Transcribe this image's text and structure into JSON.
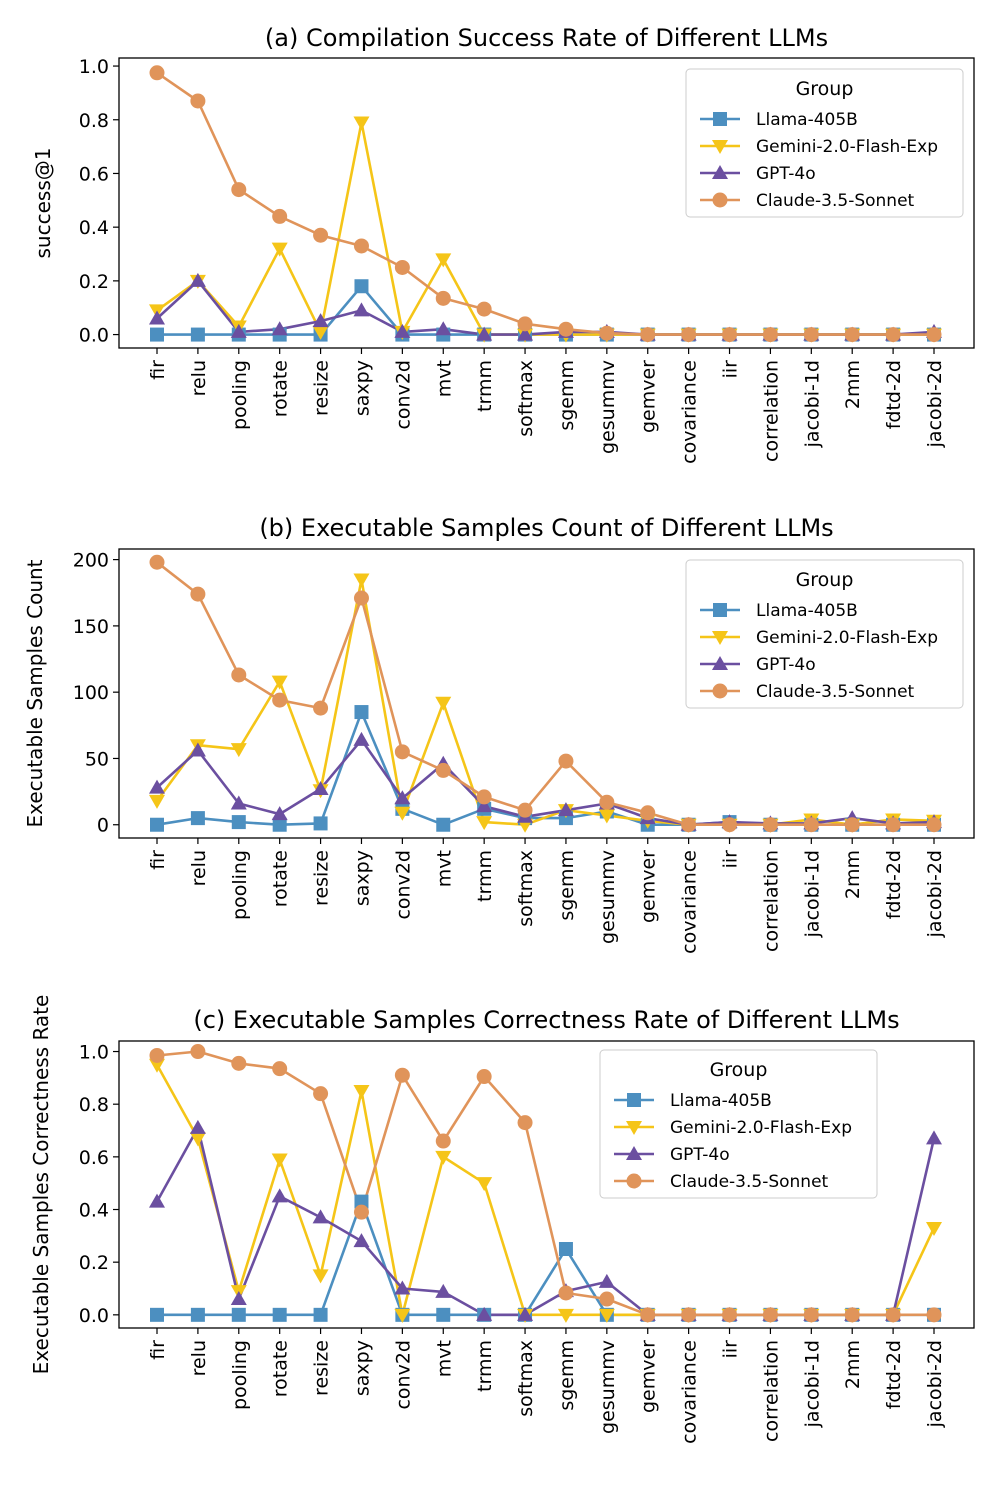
{
  "chart_data": [
    {
      "type": "line",
      "title": "(a) Compilation Success Rate of Different LLMs",
      "xlabel": "",
      "ylabel": "success@1",
      "ylim": [
        -0.05,
        1.03
      ],
      "yticks": [
        0.0,
        0.2,
        0.4,
        0.6,
        0.8,
        1.0
      ],
      "ytick_labels": [
        "0.0",
        "0.2",
        "0.4",
        "0.6",
        "0.8",
        "1.0"
      ],
      "legend_position": "top-right",
      "categories": [
        "fir",
        "relu",
        "pooling",
        "rotate",
        "resize",
        "saxpy",
        "conv2d",
        "mvt",
        "trmm",
        "softmax",
        "sgemm",
        "gesummv",
        "gemver",
        "covariance",
        "iir",
        "correlation",
        "jacobi-1d",
        "2mm",
        "fdtd-2d",
        "jacobi-2d"
      ],
      "legend": {
        "title": "Group",
        "entries": [
          "Llama-405B",
          "Gemini-2.0-Flash-Exp",
          "GPT-4o",
          "Claude-3.5-Sonnet"
        ]
      },
      "series": [
        {
          "name": "Llama-405B",
          "color": "#4c8fc0",
          "marker": "square",
          "values": [
            0,
            0,
            0,
            0,
            0,
            0.18,
            0,
            0,
            0,
            0,
            0,
            0,
            0,
            0,
            0,
            0,
            0,
            0,
            0,
            0
          ]
        },
        {
          "name": "Gemini-2.0-Flash-Exp",
          "color": "#f5c518",
          "marker": "triangle-down",
          "values": [
            0.09,
            0.2,
            0.03,
            0.32,
            0.01,
            0.79,
            0.01,
            0.28,
            0,
            0,
            0,
            0,
            0,
            0,
            0,
            0,
            0,
            0,
            0,
            0
          ]
        },
        {
          "name": "GPT-4o",
          "color": "#6b4fa0",
          "marker": "triangle-up",
          "values": [
            0.06,
            0.2,
            0.01,
            0.02,
            0.05,
            0.09,
            0.01,
            0.02,
            0,
            0,
            0.01,
            0.01,
            0,
            0,
            0,
            0,
            0,
            0,
            0,
            0.01
          ]
        },
        {
          "name": "Claude-3.5-Sonnet",
          "color": "#e0945a",
          "marker": "circle",
          "values": [
            0.975,
            0.87,
            0.54,
            0.44,
            0.37,
            0.33,
            0.25,
            0.135,
            0.095,
            0.04,
            0.02,
            0.005,
            0,
            0,
            0,
            0,
            0,
            0,
            0,
            0
          ]
        }
      ]
    },
    {
      "type": "line",
      "title": "(b) Executable Samples Count of Different LLMs",
      "xlabel": "",
      "ylabel": "Executable Samples Count",
      "ylim": [
        -10,
        208
      ],
      "yticks": [
        0,
        50,
        100,
        150,
        200
      ],
      "ytick_labels": [
        "0",
        "50",
        "100",
        "150",
        "200"
      ],
      "legend_position": "top-right",
      "categories": [
        "fir",
        "relu",
        "pooling",
        "rotate",
        "resize",
        "saxpy",
        "conv2d",
        "mvt",
        "trmm",
        "softmax",
        "sgemm",
        "gesummv",
        "gemver",
        "covariance",
        "iir",
        "correlation",
        "jacobi-1d",
        "2mm",
        "fdtd-2d",
        "jacobi-2d"
      ],
      "legend": {
        "title": "Group",
        "entries": [
          "Llama-405B",
          "Gemini-2.0-Flash-Exp",
          "GPT-4o",
          "Claude-3.5-Sonnet"
        ]
      },
      "series": [
        {
          "name": "Llama-405B",
          "color": "#4c8fc0",
          "marker": "square",
          "values": [
            0,
            5,
            2,
            0,
            1,
            85,
            12,
            0,
            12,
            5,
            5,
            10,
            0,
            0,
            2,
            0,
            0,
            0,
            0,
            0
          ]
        },
        {
          "name": "Gemini-2.0-Flash-Exp",
          "color": "#f5c518",
          "marker": "triangle-down",
          "values": [
            18,
            60,
            57,
            108,
            26,
            185,
            9,
            92,
            2,
            0,
            11,
            7,
            3,
            0,
            0,
            0,
            4,
            0,
            4,
            3
          ]
        },
        {
          "name": "GPT-4o",
          "color": "#6b4fa0",
          "marker": "triangle-up",
          "values": [
            28,
            56,
            16,
            8,
            27,
            64,
            20,
            46,
            14,
            6,
            11,
            16,
            5,
            0,
            2,
            1,
            1,
            5,
            1,
            2
          ]
        },
        {
          "name": "Claude-3.5-Sonnet",
          "color": "#e0945a",
          "marker": "circle",
          "values": [
            198,
            174,
            113,
            94,
            88,
            171,
            55,
            41,
            21,
            11,
            48,
            17,
            9,
            0,
            0,
            0,
            0,
            0,
            0,
            0
          ]
        }
      ]
    },
    {
      "type": "line",
      "title": "(c) Executable Samples Correctness Rate of Different LLMs",
      "xlabel": "",
      "ylabel": "Executable Samples Correctness Rate",
      "ylim": [
        -0.05,
        1.04
      ],
      "yticks": [
        0.0,
        0.2,
        0.4,
        0.6,
        0.8,
        1.0
      ],
      "ytick_labels": [
        "0.0",
        "0.2",
        "0.4",
        "0.6",
        "0.8",
        "1.0"
      ],
      "legend_position": "top-right",
      "categories": [
        "fir",
        "relu",
        "pooling",
        "rotate",
        "resize",
        "saxpy",
        "conv2d",
        "mvt",
        "trmm",
        "softmax",
        "sgemm",
        "gesummv",
        "gemver",
        "covariance",
        "iir",
        "correlation",
        "jacobi-1d",
        "2mm",
        "fdtd-2d",
        "jacobi-2d"
      ],
      "legend": {
        "title": "Group",
        "entries": [
          "Llama-405B",
          "Gemini-2.0-Flash-Exp",
          "GPT-4o",
          "Claude-3.5-Sonnet"
        ]
      },
      "series": [
        {
          "name": "Llama-405B",
          "color": "#4c8fc0",
          "marker": "square",
          "values": [
            0,
            0,
            0,
            0,
            0,
            0.43,
            0,
            0,
            0,
            0,
            0.25,
            0,
            0,
            0,
            0,
            0,
            0,
            0,
            0,
            0
          ]
        },
        {
          "name": "Gemini-2.0-Flash-Exp",
          "color": "#f5c518",
          "marker": "triangle-down",
          "values": [
            0.95,
            0.67,
            0.09,
            0.59,
            0.15,
            0.85,
            0,
            0.6,
            0.5,
            0,
            0,
            0,
            0,
            0,
            0,
            0,
            0,
            0,
            0,
            0.33
          ]
        },
        {
          "name": "GPT-4o",
          "color": "#6b4fa0",
          "marker": "triangle-up",
          "values": [
            0.43,
            0.71,
            0.06,
            0.45,
            0.37,
            0.28,
            0.1,
            0.087,
            0,
            0,
            0.09,
            0.125,
            0,
            0,
            0,
            0,
            0,
            0,
            0,
            0.67
          ]
        },
        {
          "name": "Claude-3.5-Sonnet",
          "color": "#e0945a",
          "marker": "circle",
          "values": [
            0.985,
            1.0,
            0.955,
            0.935,
            0.84,
            0.39,
            0.91,
            0.66,
            0.905,
            0.73,
            0.083,
            0.06,
            0,
            0,
            0,
            0,
            0,
            0,
            0,
            0
          ]
        }
      ]
    }
  ]
}
